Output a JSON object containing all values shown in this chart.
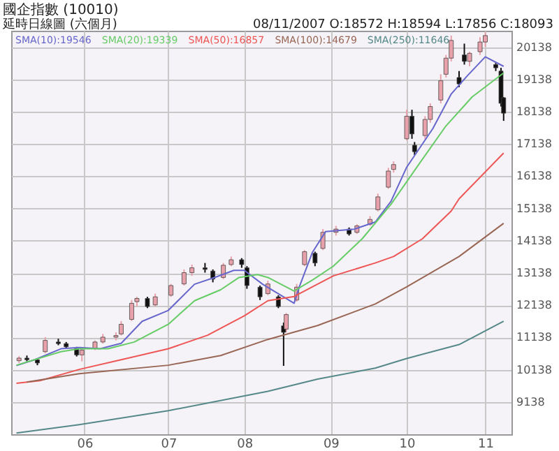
{
  "chart_data": {
    "type": "candlestick",
    "title": "國企指數 (10010)",
    "subtitle": "延時日線圖 (六個月)",
    "annotations": [
      "08/11/2007 O:18572 H:18594 L:17856 C:18093"
    ],
    "x": [
      "2007-05-07",
      "2007-05-10",
      "2007-05-14",
      "2007-05-17",
      "2007-05-22",
      "2007-05-25",
      "2007-05-29",
      "2007-05-31",
      "2007-06-05",
      "2007-06-08",
      "2007-06-13",
      "2007-06-15",
      "2007-06-19",
      "2007-06-21",
      "2007-06-25",
      "2007-06-28",
      "2007-07-04",
      "2007-07-09",
      "2007-07-12",
      "2007-07-17",
      "2007-07-20",
      "2007-07-24",
      "2007-07-27",
      "2007-07-31",
      "2007-08-02",
      "2007-08-07",
      "2007-08-10",
      "2007-08-14",
      "2007-08-16",
      "2007-08-17",
      "2007-08-21",
      "2007-08-24",
      "2007-08-28",
      "2007-08-31",
      "2007-09-05",
      "2007-09-10",
      "2007-09-13",
      "2007-09-18",
      "2007-09-21",
      "2007-09-25",
      "2007-09-27",
      "2007-10-02",
      "2007-10-04",
      "2007-10-05",
      "2007-10-09",
      "2007-10-11",
      "2007-10-15",
      "2007-10-17",
      "2007-10-19",
      "2007-10-22",
      "2007-10-24",
      "2007-10-26",
      "2007-10-30",
      "2007-11-01",
      "2007-11-05",
      "2007-11-07",
      "2007-11-08"
    ],
    "ohlc": [
      [
        10420,
        10560,
        10350,
        10500
      ],
      [
        10500,
        10580,
        10400,
        10450
      ],
      [
        10450,
        10480,
        10280,
        10350
      ],
      [
        10700,
        11150,
        10650,
        11050
      ],
      [
        11000,
        11100,
        10900,
        10950
      ],
      [
        10950,
        11000,
        10800,
        10850
      ],
      [
        10800,
        10850,
        10550,
        10600
      ],
      [
        10600,
        10800,
        10400,
        10750
      ],
      [
        10800,
        11050,
        10750,
        11000
      ],
      [
        11000,
        11250,
        10950,
        11150
      ],
      [
        11150,
        11300,
        11050,
        11200
      ],
      [
        11250,
        11650,
        11200,
        11550
      ],
      [
        11700,
        12300,
        11650,
        12200
      ],
      [
        12250,
        12400,
        12100,
        12350
      ],
      [
        12350,
        12400,
        12050,
        12100
      ],
      [
        12150,
        12500,
        12100,
        12400
      ],
      [
        12450,
        12800,
        12400,
        12750
      ],
      [
        12800,
        13250,
        12750,
        13150
      ],
      [
        13150,
        13400,
        13050,
        13300
      ],
      [
        13300,
        13450,
        13150,
        13250
      ],
      [
        13200,
        13250,
        12850,
        12950
      ],
      [
        13000,
        13450,
        12950,
        13380
      ],
      [
        13400,
        13650,
        13350,
        13550
      ],
      [
        13550,
        13600,
        13300,
        13400
      ],
      [
        13300,
        13350,
        12650,
        12750
      ],
      [
        12700,
        12750,
        12300,
        12400
      ],
      [
        12500,
        12900,
        12450,
        12800
      ],
      [
        12400,
        12450,
        12050,
        12100
      ],
      [
        11500,
        11600,
        10260,
        11300
      ],
      [
        11400,
        11900,
        11300,
        11850
      ],
      [
        12300,
        12800,
        12250,
        12700
      ],
      [
        13400,
        13850,
        13350,
        13800
      ],
      [
        13750,
        13800,
        13350,
        13450
      ],
      [
        13900,
        14500,
        13850,
        14400
      ],
      [
        14400,
        14600,
        14300,
        14500
      ],
      [
        14500,
        14550,
        14300,
        14350
      ],
      [
        14400,
        14650,
        14350,
        14600
      ],
      [
        14650,
        14900,
        14600,
        14800
      ],
      [
        15100,
        15600,
        15050,
        15500
      ],
      [
        15800,
        16400,
        15750,
        16300
      ],
      [
        16350,
        16600,
        16250,
        16500
      ],
      [
        17300,
        18200,
        17250,
        18000
      ],
      [
        18000,
        18200,
        17300,
        17450
      ],
      [
        17100,
        17200,
        16800,
        16900
      ],
      [
        17400,
        18000,
        17300,
        17900
      ],
      [
        17900,
        18400,
        17800,
        18300
      ],
      [
        18500,
        19300,
        18400,
        19100
      ],
      [
        19300,
        19900,
        19200,
        19800
      ],
      [
        19800,
        20500,
        19700,
        20350
      ],
      [
        19200,
        19400,
        18900,
        19000
      ],
      [
        19900,
        20250,
        19600,
        19700
      ],
      [
        19700,
        20000,
        19550,
        19950
      ],
      [
        20000,
        20450,
        19900,
        20300
      ],
      [
        20300,
        20600,
        20150,
        20500
      ],
      [
        19600,
        19650,
        19400,
        19500
      ],
      [
        19400,
        19500,
        18300,
        18400
      ],
      [
        18572,
        18594,
        17856,
        18093
      ]
    ],
    "colors": [
      "#e8a0aa",
      "#111111",
      "#111111",
      "#e8a0aa",
      "#111111",
      "#111111",
      "#111111",
      "#e8a0aa",
      "#e8a0aa",
      "#e8a0aa",
      "#e8a0aa",
      "#e8a0aa",
      "#e8a0aa",
      "#e8a0aa",
      "#111111",
      "#e8a0aa",
      "#e8a0aa",
      "#e8a0aa",
      "#e8a0aa",
      "#111111",
      "#111111",
      "#e8a0aa",
      "#e8a0aa",
      "#111111",
      "#111111",
      "#111111",
      "#e8a0aa",
      "#111111",
      "#111111",
      "#e8a0aa",
      "#e8a0aa",
      "#e8a0aa",
      "#111111",
      "#e8a0aa",
      "#e8a0aa",
      "#111111",
      "#e8a0aa",
      "#e8a0aa",
      "#e8a0aa",
      "#e8a0aa",
      "#e8a0aa",
      "#e8a0aa",
      "#111111",
      "#111111",
      "#e8a0aa",
      "#e8a0aa",
      "#e8a0aa",
      "#e8a0aa",
      "#e8a0aa",
      "#111111",
      "#111111",
      "#e8a0aa",
      "#e8a0aa",
      "#e8a0aa",
      "#111111",
      "#111111",
      "#111111"
    ],
    "series": [
      {
        "name": "SMA(10):19546",
        "type": "line",
        "color": "#6666cc",
        "x": [
          "2007-05-06",
          "2007-05-13",
          "2007-05-23",
          "2007-05-30",
          "2007-06-07",
          "2007-06-15",
          "2007-06-23",
          "2007-07-03",
          "2007-07-13",
          "2007-07-21",
          "2007-07-28",
          "2007-08-01",
          "2007-08-08",
          "2007-08-20",
          "2007-08-22",
          "2007-08-27",
          "2007-09-01",
          "2007-09-12",
          "2007-09-20",
          "2007-09-26",
          "2007-10-02",
          "2007-10-12",
          "2007-10-19",
          "2007-10-25",
          "2007-11-01",
          "2007-11-08"
        ],
        "values": [
          10270,
          10450,
          10790,
          10830,
          10790,
          10960,
          11640,
          11980,
          12790,
          13010,
          13220,
          13220,
          12790,
          12200,
          12710,
          13780,
          14420,
          14500,
          14720,
          15360,
          16420,
          17620,
          18690,
          19240,
          19840,
          19546
        ]
      },
      {
        "name": "SMA(20):19339",
        "type": "line",
        "color": "#66cc66",
        "x": [
          "2007-05-06",
          "2007-05-23",
          "2007-05-30",
          "2007-06-10",
          "2007-06-20",
          "2007-07-03",
          "2007-07-13",
          "2007-07-23",
          "2007-07-30",
          "2007-08-06",
          "2007-08-10",
          "2007-08-20",
          "2007-08-27",
          "2007-09-04",
          "2007-09-15",
          "2007-09-26",
          "2007-10-07",
          "2007-10-17",
          "2007-10-27",
          "2007-11-08"
        ],
        "values": [
          10280,
          10700,
          10790,
          10790,
          11000,
          11550,
          12280,
          12620,
          13000,
          13090,
          13000,
          12580,
          12920,
          13350,
          14200,
          15270,
          16550,
          17700,
          18600,
          19339
        ]
      },
      {
        "name": "SMA(50):16857",
        "type": "line",
        "color": "#ee5555",
        "x": [
          "2007-05-06",
          "2007-05-15",
          "2007-05-30",
          "2007-06-15",
          "2007-07-03",
          "2007-07-18",
          "2007-08-01",
          "2007-08-10",
          "2007-08-20",
          "2007-09-04",
          "2007-09-20",
          "2007-09-27",
          "2007-10-08",
          "2007-10-19",
          "2007-10-22",
          "2007-11-08"
        ],
        "values": [
          9720,
          9800,
          10150,
          10450,
          10790,
          11210,
          11810,
          12280,
          12410,
          13050,
          13450,
          13650,
          14200,
          15060,
          15440,
          16857
        ]
      },
      {
        "name": "SMA(100):14679",
        "type": "line",
        "color": "#996655",
        "x": [
          "2007-05-10",
          "2007-05-30",
          "2007-07-03",
          "2007-07-23",
          "2007-08-10",
          "2007-08-29",
          "2007-09-20",
          "2007-10-02",
          "2007-10-22",
          "2007-11-08"
        ],
        "values": [
          9760,
          10020,
          10280,
          10580,
          11080,
          11510,
          12180,
          12710,
          13650,
          14679
        ]
      },
      {
        "name": "SMA(250):11646",
        "type": "line",
        "color": "#558888",
        "x": [
          "2007-05-06",
          "2007-05-30",
          "2007-07-03",
          "2007-08-10",
          "2007-08-29",
          "2007-09-20",
          "2007-10-02",
          "2007-10-22",
          "2007-11-08"
        ],
        "values": [
          8180,
          8440,
          8870,
          9470,
          9850,
          10190,
          10490,
          10920,
          11646
        ]
      }
    ],
    "xlim": [
      "2007-05-04",
      "2007-11-11"
    ],
    "xticks": [
      {
        "value": "2007-06-01",
        "label": "06"
      },
      {
        "value": "2007-07-03",
        "label": "07"
      },
      {
        "value": "2007-08-01",
        "label": "08"
      },
      {
        "value": "2007-09-03",
        "label": "09"
      },
      {
        "value": "2007-10-02",
        "label": "10"
      },
      {
        "value": "2007-11-01",
        "label": "11"
      }
    ],
    "ylim": [
      8140,
      20650
    ],
    "yticks": [
      9138,
      10138,
      11138,
      12138,
      13138,
      14138,
      15138,
      16138,
      17138,
      18138,
      19138,
      20138
    ],
    "grid": true,
    "legend": "top left"
  }
}
